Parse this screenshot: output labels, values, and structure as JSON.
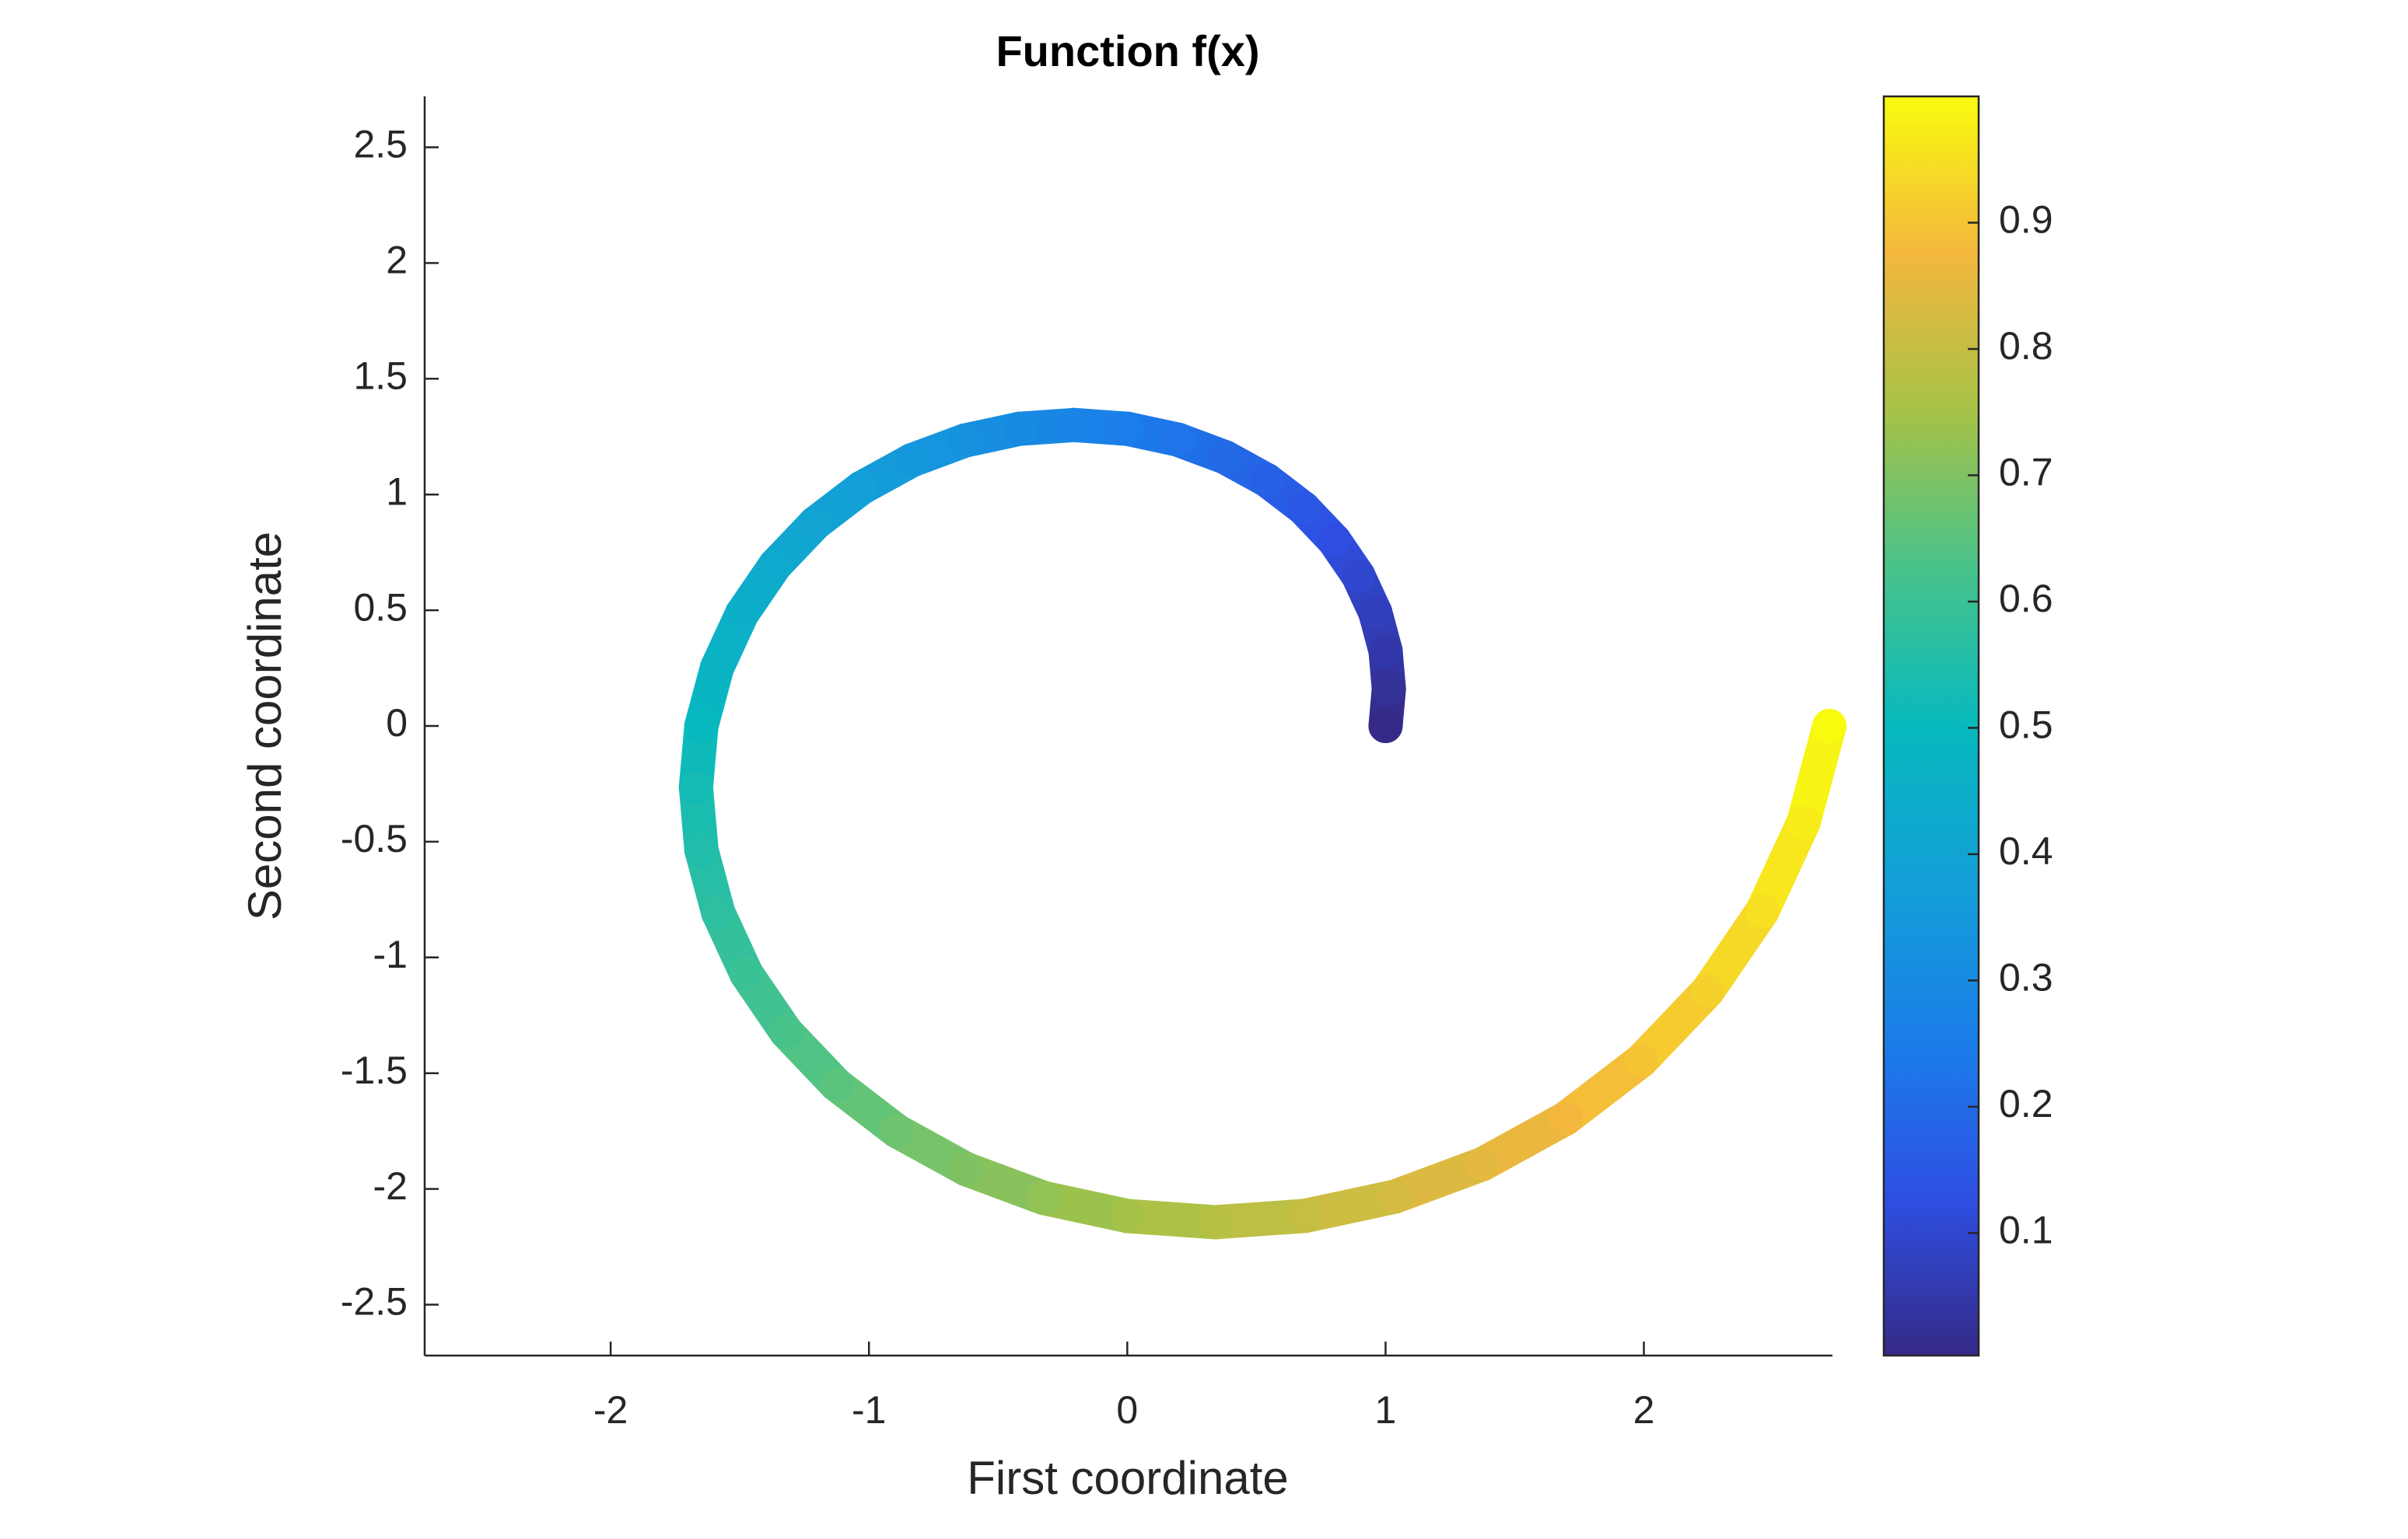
{
  "chart_data": {
    "type": "scatter",
    "title": "Function f(x)",
    "xlabel": "First coordinate",
    "ylabel": "Second coordinate",
    "x": [
      1,
      1.0127,
      0.9999,
      0.9604,
      0.8941,
      0.8012,
      0.6829,
      0.5408,
      0.3774,
      0.1959,
      0,
      -0.2059,
      -0.4171,
      -0.6283,
      -0.8341,
      -1.0288,
      -1.2069,
      -1.3629,
      -1.4916,
      -1.5882,
      -1.6487,
      -1.6697,
      -1.6485,
      -1.5834,
      -1.4741,
      -1.321,
      -1.1259,
      -0.8917,
      -0.6223,
      -0.3229,
      0,
      0.3395,
      0.6877,
      1.036,
      1.3752,
      1.6963,
      1.9898,
      2.247,
      2.4592,
      2.6186,
      2.7183
    ],
    "y": [
      0,
      0.1604,
      0.3249,
      0.4894,
      0.6496,
      0.8012,
      0.9399,
      1.0614,
      1.1616,
      1.2369,
      1.284,
      1.3003,
      1.2839,
      1.2331,
      1.1481,
      1.0288,
      0.8769,
      0.6944,
      0.4846,
      0.2515,
      0,
      -0.2644,
      -0.5356,
      -0.8068,
      -1.071,
      -1.321,
      -1.5496,
      -1.7499,
      -1.9153,
      -2.0393,
      -2.117,
      -2.1439,
      -2.1166,
      -2.0332,
      -1.8928,
      -1.6963,
      -1.4457,
      -1.1449,
      -0.799,
      -0.4147,
      0
    ],
    "c": [
      0,
      0.025,
      0.05,
      0.075,
      0.1,
      0.125,
      0.15,
      0.175,
      0.2,
      0.225,
      0.25,
      0.275,
      0.3,
      0.325,
      0.35,
      0.375,
      0.4,
      0.425,
      0.45,
      0.475,
      0.5,
      0.525,
      0.55,
      0.575,
      0.6,
      0.625,
      0.65,
      0.675,
      0.7,
      0.725,
      0.75,
      0.775,
      0.8,
      0.825,
      0.85,
      0.875,
      0.9,
      0.925,
      0.95,
      0.975,
      1
    ],
    "colormap": [
      "#352a87",
      "#2e4fe3",
      "#1a7ee9",
      "#139fd7",
      "#07b9be",
      "#48c38a",
      "#a6c247",
      "#f3b73e",
      "#f9fb0e"
    ],
    "clim": [
      0.003,
      1
    ],
    "colorbar_ticks": [
      0.1,
      0.2,
      0.3,
      0.4,
      0.5,
      0.6,
      0.7,
      0.8,
      0.9
    ],
    "xlim": [
      -2.72,
      2.73
    ],
    "ylim": [
      -2.72,
      2.72
    ],
    "xticks": [
      -2,
      -1,
      0,
      1,
      2
    ],
    "yticks": [
      -2.5,
      -2,
      -1.5,
      -1,
      -0.5,
      0,
      0.5,
      1,
      1.5,
      2,
      2.5
    ]
  }
}
